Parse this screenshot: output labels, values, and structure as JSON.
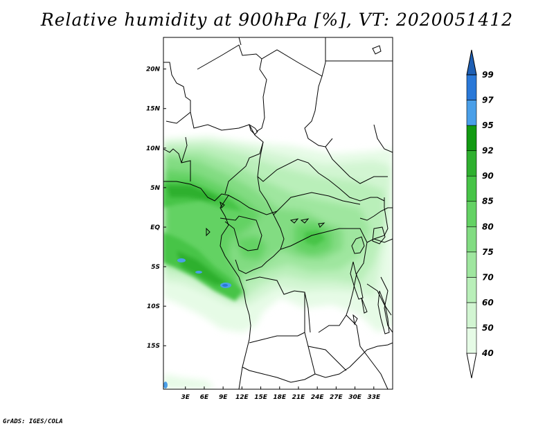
{
  "title": "Relative humidity at 900hPa [%], VT: 2020051412",
  "footer": "GrADS: IGES/COLA",
  "map": {
    "lon_range": [
      -0.5,
      36
    ],
    "lat_range": [
      -20.5,
      24
    ],
    "x_ticks": [
      {
        "lon": 3,
        "label": "3E"
      },
      {
        "lon": 6,
        "label": "6E"
      },
      {
        "lon": 9,
        "label": "9E"
      },
      {
        "lon": 12,
        "label": "12E"
      },
      {
        "lon": 15,
        "label": "15E"
      },
      {
        "lon": 18,
        "label": "18E"
      },
      {
        "lon": 21,
        "label": "21E"
      },
      {
        "lon": 24,
        "label": "24E"
      },
      {
        "lon": 27,
        "label": "27E"
      },
      {
        "lon": 30,
        "label": "30E"
      },
      {
        "lon": 33,
        "label": "33E"
      }
    ],
    "y_ticks": [
      {
        "lat": 20,
        "label": "20N"
      },
      {
        "lat": 15,
        "label": "15N"
      },
      {
        "lat": 10,
        "label": "10N"
      },
      {
        "lat": 5,
        "label": "5N"
      },
      {
        "lat": 0,
        "label": "EQ"
      },
      {
        "lat": -5,
        "label": "5S"
      },
      {
        "lat": -10,
        "label": "10S"
      },
      {
        "lat": -15,
        "label": "15S"
      }
    ]
  },
  "colorbar": {
    "levels": [
      "40",
      "50",
      "60",
      "70",
      "75",
      "80",
      "85",
      "90",
      "92",
      "95",
      "97",
      "99"
    ],
    "colors": [
      "#ffffff",
      "#e6fbe6",
      "#d2f5d2",
      "#b9efb9",
      "#9fe69f",
      "#82dc82",
      "#64d264",
      "#47c447",
      "#2fb02f",
      "#129a12",
      "#4a9fe8",
      "#2a78d8",
      "#1e5fb4"
    ]
  }
}
